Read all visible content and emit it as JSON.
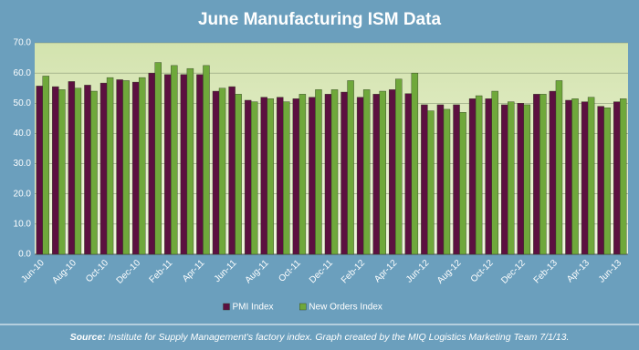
{
  "chart_data": {
    "type": "bar",
    "title": "June Manufacturing ISM Data",
    "categories": [
      "Jun-10",
      null,
      "Aug-10",
      null,
      "Oct-10",
      null,
      "Dec-10",
      null,
      "Feb-11",
      null,
      "Apr-11",
      null,
      "Jun-11",
      null,
      "Aug-11",
      null,
      "Oct-11",
      null,
      "Dec-11",
      null,
      "Feb-12",
      null,
      "Apr-12",
      null,
      "Jun-12",
      null,
      "Aug-12",
      null,
      "Oct-12",
      null,
      "Dec-12",
      null,
      "Feb-13",
      null,
      "Apr-13",
      null,
      "Jun-13"
    ],
    "series": [
      {
        "name": "PMI Index",
        "color": "#5c1040",
        "values": [
          55.7,
          55.5,
          57.2,
          56,
          56.7,
          57.8,
          57,
          60,
          59.5,
          59.5,
          59.5,
          54,
          55.5,
          51,
          52,
          52,
          51.5,
          52,
          53,
          53.7,
          52,
          53,
          54.5,
          53.2,
          49.5,
          49.5,
          49.5,
          51.5,
          51.5,
          49.5,
          50,
          53,
          54,
          51,
          50.5,
          49,
          50.5
        ]
      },
      {
        "name": "New Orders Index",
        "color": "#6fa83b",
        "values": [
          59,
          54.5,
          55,
          54,
          58.5,
          57.5,
          58.5,
          63.5,
          62.5,
          61.5,
          62.5,
          55,
          53,
          50.5,
          51.5,
          50.5,
          53,
          54.5,
          54.5,
          57.5,
          54.5,
          54,
          58,
          60,
          47.5,
          48,
          47,
          52.5,
          54,
          50.5,
          49.5,
          53,
          57.5,
          51.5,
          52,
          48.5,
          51.5
        ]
      }
    ],
    "ylim": [
      0,
      70
    ],
    "yticks": [
      {
        "value": 0,
        "label": "0.0"
      },
      {
        "value": 10,
        "label": "10.0"
      },
      {
        "value": 20,
        "label": "20.0"
      },
      {
        "value": 30,
        "label": "30.0"
      },
      {
        "value": 40,
        "label": "40.0"
      },
      {
        "value": 50,
        "label": "50.0"
      },
      {
        "value": 60,
        "label": "60.0"
      },
      {
        "value": 70,
        "label": "70.0"
      }
    ],
    "grid": true,
    "legend": "bottom",
    "source_label": "Source:",
    "source": "Institute for Supply Management's factory index. Graph created by the MIQ Logistics Marketing Team 7/1/13."
  }
}
